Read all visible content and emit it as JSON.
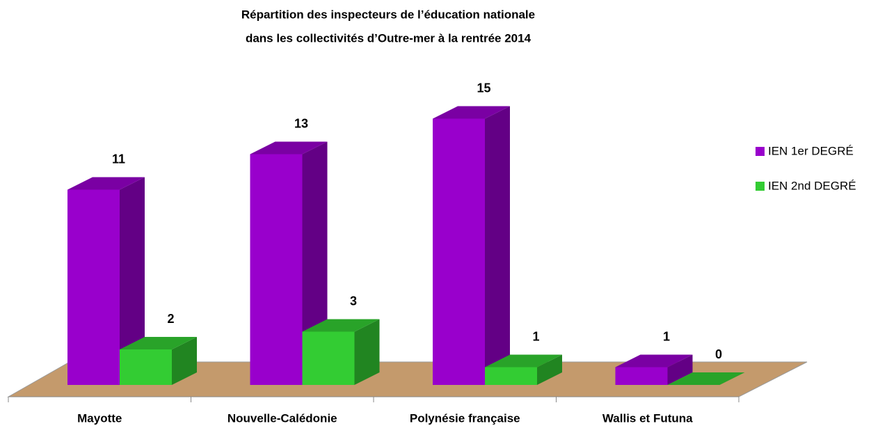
{
  "chart_data": {
    "type": "bar3d",
    "title": [
      "Répartition des inspecteurs de l’éducation nationale",
      "dans les collectivités d’Outre-mer à la rentrée 2014"
    ],
    "categories": [
      "Mayotte",
      "Nouvelle-Calédonie",
      "Polynésie française",
      "Wallis et Futuna"
    ],
    "series": [
      {
        "name": "IEN 1er DEGRÉ",
        "color": "#9900cc",
        "values": [
          11,
          13,
          15,
          1
        ]
      },
      {
        "name": "IEN 2nd DEGRÉ",
        "color": "#33cc33",
        "values": [
          2,
          3,
          1,
          0
        ]
      }
    ],
    "legend": "right"
  }
}
